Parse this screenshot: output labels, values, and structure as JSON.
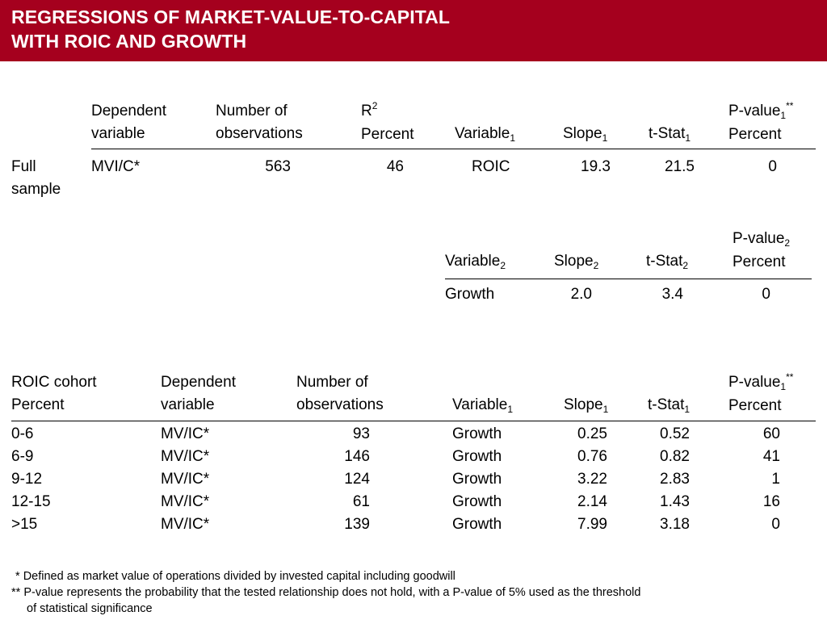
{
  "title_line1": "REGRESSIONS OF MARKET-VALUE-TO-CAPITAL",
  "title_line2": "WITH ROIC AND GROWTH",
  "colors": {
    "banner": "#a5001e",
    "title_text": "#ffffff"
  },
  "t1": {
    "h_dep_1": "Dependent",
    "h_dep_2": "variable",
    "h_obs_1": "Number of",
    "h_obs_2": "observations",
    "h_r2_1": "R",
    "h_r2_sup": "2",
    "h_r2_2": "Percent",
    "h_var": "Variable",
    "h_var_sub": "1",
    "h_slope": "Slope",
    "h_slope_sub": "1",
    "h_tstat": "t-Stat",
    "h_tstat_sub": "1",
    "h_pval": "P-value",
    "h_pval_sub": "1",
    "h_pval_sup": "**",
    "h_pval_2": "Percent",
    "row_label_1": "Full",
    "row_label_2": "sample",
    "dep": "MVI/C*",
    "obs": "563",
    "r2": "46",
    "var": "ROIC",
    "slope": "19.3",
    "tstat": "21.5",
    "pval": "0"
  },
  "t2": {
    "h_var": "Variable",
    "h_var_sub": "2",
    "h_slope": "Slope",
    "h_slope_sub": "2",
    "h_tstat": "t-Stat",
    "h_tstat_sub": "2",
    "h_pval": "P-value",
    "h_pval_sub": "2",
    "h_pval_2": "Percent",
    "var": "Growth",
    "slope": "2.0",
    "tstat": "3.4",
    "pval": "0"
  },
  "t3": {
    "h_cohort_1": "ROIC cohort",
    "h_cohort_2": "Percent",
    "h_dep_1": "Dependent",
    "h_dep_2": "variable",
    "h_obs_1": "Number of",
    "h_obs_2": "observations",
    "h_var": "Variable",
    "h_var_sub": "1",
    "h_slope": "Slope",
    "h_slope_sub": "1",
    "h_tstat": "t-Stat",
    "h_tstat_sub": "1",
    "h_pval": "P-value",
    "h_pval_sub": "1",
    "h_pval_sup": "**",
    "h_pval_2": "Percent",
    "rows": [
      {
        "cohort": "0-6",
        "dep": "MV/IC*",
        "obs": "93",
        "var": "Growth",
        "slope": "0.25",
        "tstat": "0.52",
        "pval": "60"
      },
      {
        "cohort": "6-9",
        "dep": "MV/IC*",
        "obs": "146",
        "var": "Growth",
        "slope": "0.76",
        "tstat": "0.82",
        "pval": "41"
      },
      {
        "cohort": "9-12",
        "dep": "MV/IC*",
        "obs": "124",
        "var": "Growth",
        "slope": "3.22",
        "tstat": "2.83",
        "pval": "1"
      },
      {
        "cohort": "12-15",
        "dep": "MV/IC*",
        "obs": "61",
        "var": "Growth",
        "slope": "2.14",
        "tstat": "1.43",
        "pval": "16"
      },
      {
        "cohort": ">15",
        "dep": "MV/IC*",
        "obs": "139",
        "var": "Growth",
        "slope": "7.99",
        "tstat": "3.18",
        "pval": "0"
      }
    ]
  },
  "footnotes": {
    "fn1_mark": "*",
    "fn1_text": "Defined as market value of operations divided by invested capital including goodwill",
    "fn2_mark": "**",
    "fn2_text": "P-value represents the probability that the tested relationship does not hold, with a P-value of 5% used as the threshold",
    "fn2_text_cont": "of statistical significance"
  }
}
